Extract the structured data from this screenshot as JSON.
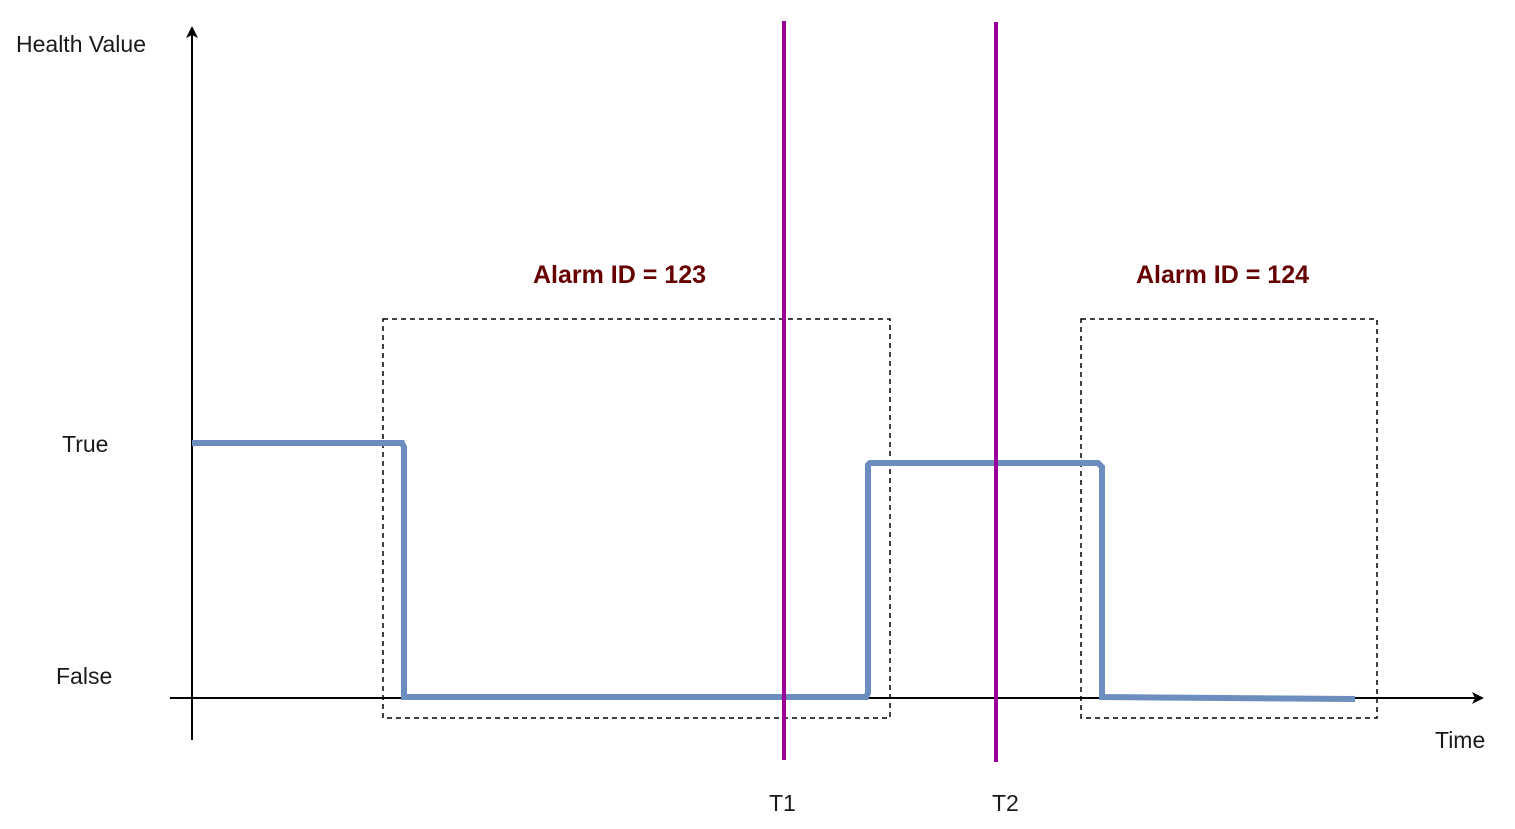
{
  "diagram": {
    "y_axis_label": "Health Value",
    "x_axis_label": "Time",
    "levels": {
      "true_label": "True",
      "false_label": "False"
    },
    "alarms": [
      {
        "title": "Alarm ID = 123"
      },
      {
        "title": "Alarm ID = 124"
      }
    ],
    "markers": [
      {
        "label": "T1"
      },
      {
        "label": "T2"
      }
    ],
    "colors": {
      "signal": "#6c8ebf",
      "marker": "#990099",
      "alarm_title": "#660000",
      "axis": "#000000",
      "alarm_box": "#000000"
    }
  }
}
